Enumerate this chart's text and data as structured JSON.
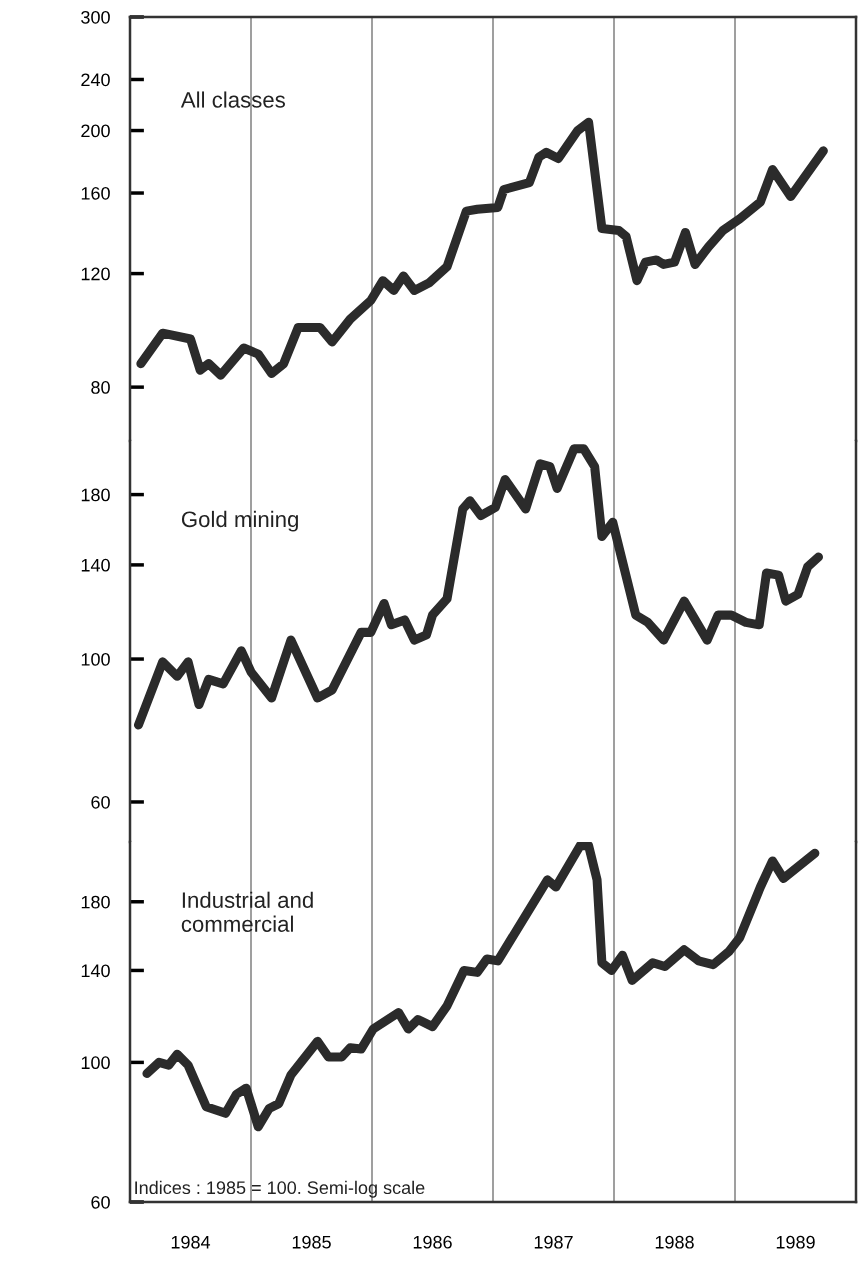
{
  "chart_data": [
    {
      "type": "line",
      "log": true,
      "xlim": [
        1984,
        1990
      ],
      "ylim": [
        66,
        300
      ],
      "yticks": [
        80,
        120,
        160,
        200,
        240,
        300
      ],
      "tick_labels": "y",
      "grid": false,
      "legend": false,
      "marker": "none",
      "line_style": "solid",
      "ref_lines": [
        {
          "axis": "x",
          "value": 1985,
          "color": "#666666"
        },
        {
          "axis": "x",
          "value": 1986,
          "color": "#666666"
        },
        {
          "axis": "x",
          "value": 1987,
          "color": "#666666"
        },
        {
          "axis": "x",
          "value": 1988,
          "color": "#666666"
        },
        {
          "axis": "x",
          "value": 1989,
          "color": "#666666"
        }
      ],
      "x": [
        1984.09,
        1984.27,
        1984.5,
        1984.58,
        1984.65,
        1984.75,
        1984.94,
        1985.06,
        1985.17,
        1985.27,
        1985.39,
        1985.57,
        1985.67,
        1985.82,
        1985.99,
        1986.09,
        1986.18,
        1986.26,
        1986.35,
        1986.47,
        1986.62,
        1986.78,
        1986.87,
        1987.04,
        1987.09,
        1987.3,
        1987.38,
        1987.44,
        1987.54,
        1987.7,
        1987.79,
        1987.9,
        1988.04,
        1988.1,
        1988.19,
        1988.26,
        1988.35,
        1988.41,
        1988.5,
        1988.59,
        1988.67,
        1988.78,
        1988.9,
        1989.04,
        1989.21,
        1989.31,
        1989.46,
        1989.73
      ],
      "series": [
        {
          "name": "All classes",
          "color": "#2b2b2b",
          "values": [
            87,
            97,
            95,
            85,
            87,
            83.5,
            92,
            90,
            84,
            87,
            99,
            99,
            94,
            102,
            109,
            117,
            113,
            119,
            113,
            116,
            123,
            150,
            151,
            152,
            162,
            166,
            182,
            185,
            181,
            200,
            206,
            141,
            140,
            137,
            117,
            125,
            126,
            124,
            125,
            139,
            124,
            132,
            140,
            146,
            155,
            174,
            158,
            186
          ]
        }
      ]
    },
    {
      "type": "line",
      "log": true,
      "xlim": [
        1984,
        1990
      ],
      "ylim": [
        52,
        218
      ],
      "yticks": [
        60,
        100,
        140,
        180
      ],
      "tick_labels": "y",
      "grid": false,
      "legend": false,
      "marker": "none",
      "line_style": "solid",
      "ref_lines": [
        {
          "axis": "x",
          "value": 1985,
          "color": "#666666"
        },
        {
          "axis": "x",
          "value": 1986,
          "color": "#666666"
        },
        {
          "axis": "x",
          "value": 1987,
          "color": "#666666"
        },
        {
          "axis": "x",
          "value": 1988,
          "color": "#666666"
        },
        {
          "axis": "x",
          "value": 1989,
          "color": "#666666"
        }
      ],
      "x": [
        1984.07,
        1984.27,
        1984.39,
        1984.48,
        1984.57,
        1984.65,
        1984.77,
        1984.92,
        1985.0,
        1985.17,
        1985.33,
        1985.55,
        1985.67,
        1985.91,
        1985.99,
        1986.1,
        1986.16,
        1986.27,
        1986.35,
        1986.45,
        1986.5,
        1986.62,
        1986.75,
        1986.81,
        1986.9,
        1987.02,
        1987.1,
        1987.27,
        1987.39,
        1987.47,
        1987.53,
        1987.67,
        1987.75,
        1987.84,
        1987.9,
        1987.99,
        1988.18,
        1988.28,
        1988.41,
        1988.58,
        1988.77,
        1988.86,
        1988.97,
        1989.09,
        1989.2,
        1989.26,
        1989.36,
        1989.42,
        1989.52,
        1989.6,
        1989.69
      ],
      "series": [
        {
          "name": "Gold mining",
          "color": "#2b2b2b",
          "values": [
            79,
            99,
            94,
            99,
            85,
            93,
            91.5,
            103,
            95.5,
            87,
            107,
            87,
            89.5,
            110,
            110,
            122,
            113,
            115,
            107,
            109,
            117,
            124,
            171,
            176,
            167,
            172,
            190,
            171,
            201,
            199,
            184,
            212,
            212,
            199,
            155,
            163,
            117,
            114,
            107,
            123,
            107,
            117,
            117,
            114,
            113,
            136,
            135,
            123,
            126,
            139,
            144
          ]
        }
      ]
    },
    {
      "type": "line",
      "log": true,
      "xlim": [
        1984,
        1990
      ],
      "ylim": [
        60,
        224
      ],
      "yticks": [
        60,
        100,
        140,
        180
      ],
      "xticks": [
        {
          "value": 1984.5,
          "label": "1984"
        },
        {
          "value": 1985.5,
          "label": "1985"
        },
        {
          "value": 1986.5,
          "label": "1986"
        },
        {
          "value": 1987.5,
          "label": "1987"
        },
        {
          "value": 1988.5,
          "label": "1988"
        },
        {
          "value": 1989.5,
          "label": "1989"
        }
      ],
      "grid": false,
      "legend": false,
      "marker": "none",
      "line_style": "solid",
      "annotations": [
        "Indices : 1985 = 100. Semi-log scale"
      ],
      "ref_lines": [
        {
          "axis": "x",
          "value": 1985,
          "color": "#666666"
        },
        {
          "axis": "x",
          "value": 1986,
          "color": "#666666"
        },
        {
          "axis": "x",
          "value": 1987,
          "color": "#666666"
        },
        {
          "axis": "x",
          "value": 1988,
          "color": "#666666"
        },
        {
          "axis": "x",
          "value": 1989,
          "color": "#666666"
        }
      ],
      "x": [
        1984.14,
        1984.24,
        1984.32,
        1984.39,
        1984.48,
        1984.63,
        1984.79,
        1984.88,
        1984.96,
        1985.06,
        1985.15,
        1985.23,
        1985.33,
        1985.55,
        1985.64,
        1985.75,
        1985.82,
        1985.91,
        1986.01,
        1986.22,
        1986.3,
        1986.38,
        1986.5,
        1986.62,
        1986.76,
        1986.87,
        1986.95,
        1987.04,
        1987.45,
        1987.52,
        1987.72,
        1987.79,
        1987.86,
        1987.9,
        1987.98,
        1988.07,
        1988.15,
        1988.32,
        1988.42,
        1988.58,
        1988.7,
        1988.82,
        1988.95,
        1989.04,
        1989.21,
        1989.31,
        1989.4,
        1989.66
      ],
      "series": [
        {
          "name": "Industrial and\ncommercial",
          "color": "#2b2b2b",
          "values": [
            96,
            100,
            99,
            103,
            99,
            85,
            83,
            89,
            91,
            79,
            84.5,
            86,
            95.5,
            108,
            102,
            102,
            105.5,
            105,
            113,
            120,
            113,
            117,
            114,
            123,
            140,
            139,
            146,
            145,
            195,
            190,
            221,
            221,
            195,
            144,
            140,
            148,
            135,
            144,
            142,
            151,
            145,
            143,
            150,
            158,
            190,
            209,
            196,
            215
          ]
        }
      ]
    }
  ]
}
